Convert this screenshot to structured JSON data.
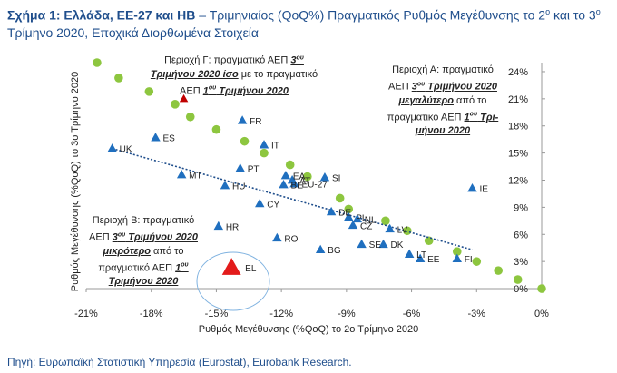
{
  "title": {
    "prefix": "Σχήμα 1: Ελλάδα, ΕΕ-27 και ΗΒ",
    "dash": " – ",
    "text1": "Τριμηνιαίος (QoQ%) Πραγματικός Ρυθμός Μεγέθυνσης το 2",
    "sup1": "ο",
    "text2": " και το 3",
    "sup2": "ο",
    "text3": " Τρίμηνο 2020, Εποχικά Διορθωμένα Στοιχεία"
  },
  "source": "Πηγή: Ευρωπαϊκή Στατιστική Υπηρεσία (Eurostat), Eurobank Research.",
  "notes": {
    "gamma": {
      "l1": "Περιοχή Γ: πραγματικό ΑΕΠ ",
      "l1b": "3",
      "l1sup": "ου",
      "l2b": "Τριμήνου 2020 ίσο",
      "l2": " με το πραγματικό",
      "l3": "ΑΕΠ ",
      "l3b": "1",
      "l3sup": "ου",
      "l3c": " Τριμήνου 2020"
    },
    "alpha": {
      "l1": "Περιοχή Α: πραγματικό",
      "l2": "ΑΕΠ ",
      "l2b": "3",
      "l2sup": "ου",
      "l2c": " Τριμήνου 2020",
      "l3b": "μεγαλύτερο",
      "l3": " από το",
      "l4": "πραγματικό ΑΕΠ ",
      "l4b": "1",
      "l4sup": "ου",
      "l4c": " Τρι-",
      "l5b": "μήνου 2020"
    },
    "beta": {
      "l1": "Περιοχή Β: πραγματικό",
      "l2": "ΑΕΠ ",
      "l2b": "3",
      "l2sup": "ου",
      "l2c": " Τριμήνου 2020",
      "l3b": "μικρότερο",
      "l3": " από το",
      "l4": "πραγματικό ΑΕΠ ",
      "l4b": "1",
      "l4sup": "ου",
      "l5b": "Τριμήνου 2020"
    }
  },
  "chart_data": {
    "type": "scatter",
    "xlabel": "Ρυθμός Μεγέθυνσης (%QoQ) το 2ο Τρίμηνο 2020",
    "ylabel": "Ρυθμός Μεγέθυνσης (%QoQ) το 3ο Τρίμηνο 2020",
    "xlim": [
      -21,
      0
    ],
    "ylim": [
      -1,
      25
    ],
    "x_ticks": [
      -21,
      -18,
      -15,
      -12,
      -9,
      -6,
      -3,
      0
    ],
    "x_tick_labels": [
      "-21%",
      "-18%",
      "-15%",
      "-12%",
      "-9%",
      "-6%",
      "-3%",
      "0%"
    ],
    "y_ticks": [
      0,
      3,
      6,
      9,
      12,
      15,
      18,
      21,
      24
    ],
    "y_tick_labels": [
      "0%",
      "3%",
      "6%",
      "9%",
      "12%",
      "15%",
      "18%",
      "21%",
      "24%"
    ],
    "y_axis_position": "right",
    "grid": false,
    "colors": {
      "countries": "#1f6fbf",
      "reference": "#8dc63f",
      "greece": "#e31b1b",
      "trend": "#1f4e8c"
    },
    "series": [
      {
        "type": "triangle",
        "points": [
          {
            "label": "UK",
            "x": -19.8,
            "y": 15.5
          },
          {
            "label": "ES",
            "x": -17.8,
            "y": 16.7
          },
          {
            "label": "MT",
            "x": -16.6,
            "y": 12.6
          },
          {
            "label": "FR",
            "x": -13.8,
            "y": 18.6
          },
          {
            "label": "IT",
            "x": -12.8,
            "y": 15.9
          },
          {
            "label": "PT",
            "x": -13.9,
            "y": 13.3
          },
          {
            "label": "HU",
            "x": -14.6,
            "y": 11.4
          },
          {
            "label": "CY",
            "x": -13.0,
            "y": 9.4
          },
          {
            "label": "HR",
            "x": -14.9,
            "y": 6.9
          },
          {
            "label": "RO",
            "x": -12.2,
            "y": 5.6
          },
          {
            "label": "EA",
            "x": -11.8,
            "y": 12.5
          },
          {
            "label": "AT",
            "x": -11.5,
            "y": 12.0
          },
          {
            "label": "BE",
            "x": -11.9,
            "y": 11.5
          },
          {
            "label": "EU-27",
            "x": -11.4,
            "y": 11.6
          },
          {
            "label": "SI",
            "x": -10.0,
            "y": 12.3
          },
          {
            "label": "DE",
            "x": -9.7,
            "y": 8.5
          },
          {
            "label": "PL",
            "x": -8.9,
            "y": 7.9
          },
          {
            "label": "NL",
            "x": -8.5,
            "y": 7.7
          },
          {
            "label": "CZ",
            "x": -8.7,
            "y": 7.0
          },
          {
            "label": "BG",
            "x": -10.2,
            "y": 4.3
          },
          {
            "label": "SE",
            "x": -8.3,
            "y": 4.9
          },
          {
            "label": "DK",
            "x": -7.3,
            "y": 4.9
          },
          {
            "label": "LV",
            "x": -7.0,
            "y": 6.6
          },
          {
            "label": "LT",
            "x": -6.1,
            "y": 3.8
          },
          {
            "label": "EE",
            "x": -5.6,
            "y": 3.3
          },
          {
            "label": "FI",
            "x": -3.9,
            "y": 3.3
          },
          {
            "label": "IE",
            "x": -3.2,
            "y": 11.1
          }
        ]
      },
      {
        "type": "circle",
        "points": [
          {
            "x": -20.5,
            "y": 25.0
          },
          {
            "x": -19.5,
            "y": 23.3
          },
          {
            "x": -18.1,
            "y": 21.8
          },
          {
            "x": -16.9,
            "y": 20.4
          },
          {
            "x": -16.2,
            "y": 19.0
          },
          {
            "x": -15.0,
            "y": 17.6
          },
          {
            "x": -13.7,
            "y": 16.3
          },
          {
            "x": -12.8,
            "y": 15.0
          },
          {
            "x": -11.6,
            "y": 13.7
          },
          {
            "x": -10.8,
            "y": 12.4
          },
          {
            "x": -9.3,
            "y": 10.0
          },
          {
            "x": -8.9,
            "y": 8.8
          },
          {
            "x": -7.2,
            "y": 7.5
          },
          {
            "x": -6.2,
            "y": 6.4
          },
          {
            "x": -5.2,
            "y": 5.3
          },
          {
            "x": -3.9,
            "y": 4.1
          },
          {
            "x": -3.0,
            "y": 3.0
          },
          {
            "x": -2.0,
            "y": 2.0
          },
          {
            "x": -1.1,
            "y": 1.0
          },
          {
            "x": 0,
            "y": 0
          }
        ]
      },
      {
        "type": "triangle-highlight",
        "points": [
          {
            "label": "EL",
            "x": -14.3,
            "y": 2.3
          }
        ]
      },
      {
        "type": "marker",
        "points": [
          {
            "x": -16.5,
            "y": 21.0
          }
        ]
      }
    ],
    "trendline": {
      "from": {
        "x": -19.8,
        "y": 15.5
      },
      "to": {
        "x": -3.2,
        "y": 4.3
      }
    }
  }
}
